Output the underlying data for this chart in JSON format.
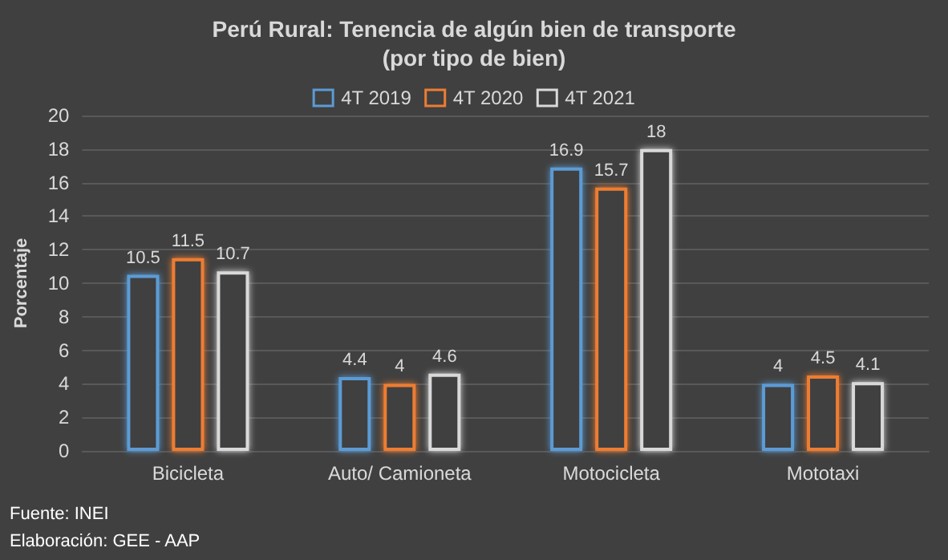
{
  "chart_data": {
    "type": "bar",
    "title": "Perú Rural: Tenencia de algún bien de transporte",
    "subtitle": "(por tipo de bien)",
    "ylabel": "Porcentaje",
    "categories": [
      "Bicicleta",
      "Auto/ Camioneta",
      "Motocicleta",
      "Mototaxi"
    ],
    "series": [
      {
        "name": "4T 2019",
        "color": "#5b9bd5",
        "values": [
          10.5,
          4.4,
          16.9,
          4
        ]
      },
      {
        "name": "4T 2020",
        "color": "#ed7d31",
        "values": [
          11.5,
          4,
          15.7,
          4.5
        ]
      },
      {
        "name": "4T 2021",
        "color": "#d9d9d9",
        "values": [
          10.7,
          4.6,
          18,
          4.1
        ]
      }
    ],
    "ylim": [
      0,
      20
    ],
    "yticks": [
      0,
      2,
      4,
      6,
      8,
      10,
      12,
      14,
      16,
      18,
      20
    ],
    "grid": "y",
    "legend": "top",
    "data_labels": true,
    "annotations": [
      "Fuente: INEI",
      "Elaboración: GEE - AAP"
    ]
  }
}
